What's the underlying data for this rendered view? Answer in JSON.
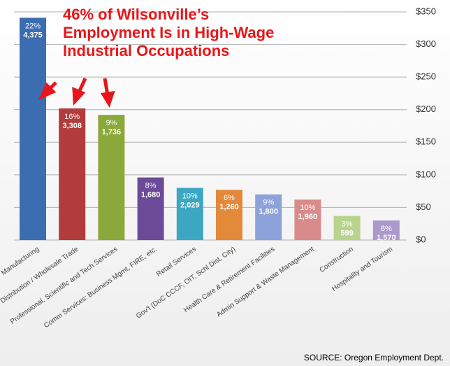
{
  "chart_data": {
    "type": "bar",
    "annotation": [
      "46% of Wilsonville’s",
      "Employment Is in High-Wage",
      "Industrial Occupations"
    ],
    "source": "SOURCE: Oregon Employment Dept.",
    "categories": [
      "Manufacturing",
      "Distribution / Wholesale Trade",
      "Professional, Scientific and Tech Services",
      "Comm Services: Business Mgmt, FIRE, etc.",
      "Retail Services",
      "Gov't (DoC CCCF, OIT, Schl Dist, City)",
      "Health Care & Retirement Facilities",
      "Admin Support & Waste Management",
      "Construction",
      "Hospitality and Tourism"
    ],
    "values": [
      341,
      202,
      192,
      96,
      80,
      77,
      70,
      62,
      37,
      30
    ],
    "colors": [
      "#3c6db0",
      "#b23b3b",
      "#8ba83a",
      "#6b4a98",
      "#3ba7c2",
      "#e2893a",
      "#8ea2da",
      "#d98b8b",
      "#b9d38c",
      "#a99acb"
    ],
    "share_labels": [
      "22%",
      "16%",
      "9%",
      "8%",
      "10%",
      "6%",
      "9%",
      "10%",
      "3%",
      "8%"
    ],
    "employment_labels": [
      "4,375",
      "3,308",
      "1,736",
      "1,680",
      "2,029",
      "1,260",
      "1,800",
      "1,960",
      "599",
      "1,570"
    ],
    "ylim": [
      0,
      350
    ],
    "yticks": [
      {
        "value": 0,
        "label": "$0"
      },
      {
        "value": 50,
        "label": "$50"
      },
      {
        "value": 100,
        "label": "$100"
      },
      {
        "value": 150,
        "label": "$150"
      },
      {
        "value": 200,
        "label": "$200"
      },
      {
        "value": 250,
        "label": "$250"
      },
      {
        "value": 300,
        "label": "$300"
      },
      {
        "value": 350,
        "label": "$350"
      }
    ],
    "grid": true
  }
}
